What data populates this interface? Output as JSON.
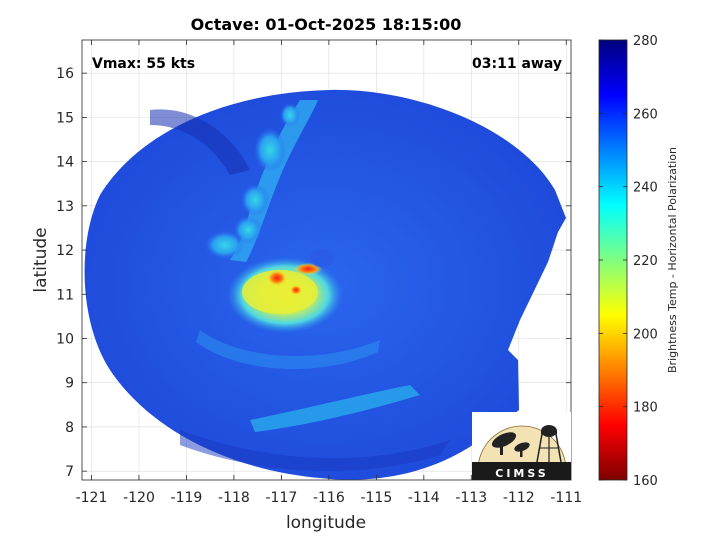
{
  "title": "Octave: 01-Oct-2025 18:15:00",
  "vmax": "Vmax: 55 kts",
  "time_away": "03:11 away",
  "xlabel": "longitude",
  "ylabel": "latitude",
  "x_ticks": [
    "-121",
    "-120",
    "-119",
    "-118",
    "-117",
    "-116",
    "-115",
    "-114",
    "-113",
    "-112",
    "-111"
  ],
  "x_tick_values": [
    -121,
    -120,
    -119,
    -118,
    -117,
    -116,
    -115,
    -114,
    -113,
    -112,
    -111
  ],
  "xlim": [
    -121.2,
    -110.9
  ],
  "y_ticks": [
    "16",
    "15",
    "14",
    "13",
    "12",
    "11",
    "10",
    "9",
    "8",
    "7"
  ],
  "y_tick_values": [
    16,
    15,
    14,
    13,
    12,
    11,
    10,
    9,
    8,
    7
  ],
  "ylim": [
    6.8,
    16.75
  ],
  "colorbar": {
    "label": "Brightness Temp - Horizontal Polarization",
    "ticks": [
      "280",
      "260",
      "240",
      "220",
      "200",
      "180",
      "160"
    ],
    "tick_values": [
      280,
      260,
      240,
      220,
      200,
      180,
      160
    ],
    "range": [
      160,
      280
    ]
  },
  "storm_center": {
    "lon": -116.6,
    "lat": 11.2
  },
  "logo": {
    "text": "CIMSS"
  },
  "colors": {
    "ocean_deep": "#1a3fd0",
    "ocean_mid": "#2a6af0",
    "cloud_cyan": "#2ec8ea",
    "cloud_yellow": "#f2ee2a",
    "core_red": "#e8231a"
  }
}
